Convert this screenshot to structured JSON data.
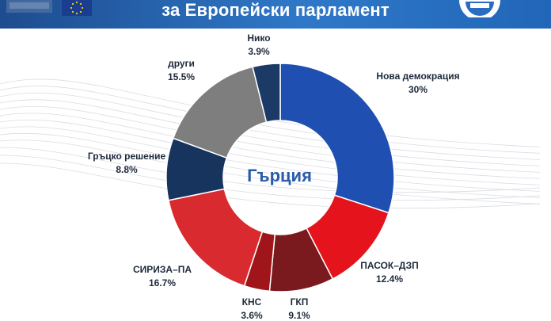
{
  "header": {
    "title": "за Европейски парламент"
  },
  "colors": {
    "header_bg": "#2a6cc0",
    "text": "#1e2a3a",
    "center_label": "#2a5ba8"
  },
  "chart_data": {
    "type": "pie",
    "donut": true,
    "center_label": "Гърция",
    "unit": "%",
    "slices": [
      {
        "name": "Нова демокрация",
        "value": 30,
        "label": "30%",
        "color": "#1f4fb0"
      },
      {
        "name": "ПАСОК–ДЗП",
        "value": 12.4,
        "label": "12.4%",
        "color": "#e5141c"
      },
      {
        "name": "ГКП",
        "value": 9.1,
        "label": "9.1%",
        "color": "#7a1a1f"
      },
      {
        "name": "КНС",
        "value": 3.6,
        "label": "3.6%",
        "color": "#a0151a"
      },
      {
        "name": "СИРИЗА–ПА",
        "value": 16.7,
        "label": "16.7%",
        "color": "#d92a2f"
      },
      {
        "name": "Гръцко решение",
        "value": 8.8,
        "label": "8.8%",
        "color": "#17345f"
      },
      {
        "name": "други",
        "value": 15.5,
        "label": "15.5%",
        "color": "#7e7e7e"
      },
      {
        "name": "Нико",
        "value": 3.9,
        "label": "3.9%",
        "color": "#1b3a66"
      }
    ]
  }
}
